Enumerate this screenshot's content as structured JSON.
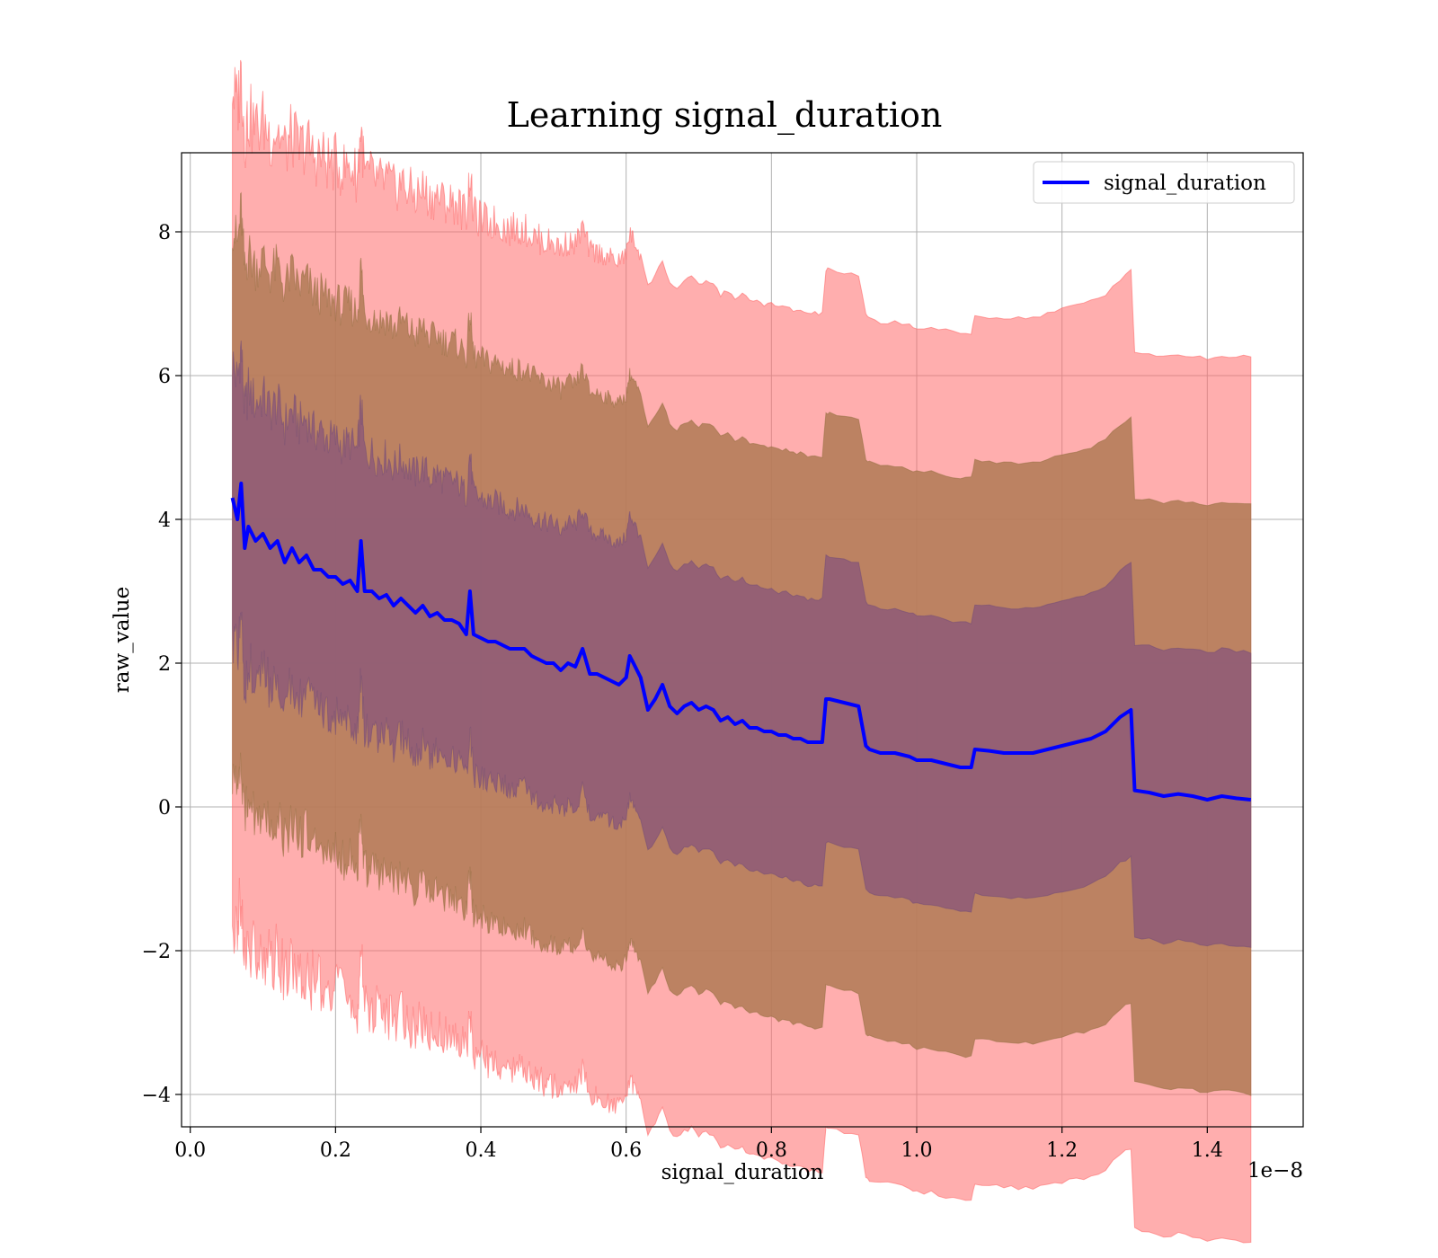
{
  "chart_data": {
    "type": "line",
    "title": "Learning signal_duration",
    "xlabel": "signal_duration",
    "ylabel": "raw_value",
    "x_offset_text": "1e−8",
    "xlim": [
      -0.012,
      1.532
    ],
    "ylim": [
      -4.45,
      9.1
    ],
    "x_ticks": [
      0.0,
      0.2,
      0.4,
      0.6,
      0.8,
      1.0,
      1.2,
      1.4
    ],
    "x_tick_labels": [
      "0.0",
      "0.2",
      "0.4",
      "0.6",
      "0.8",
      "1.0",
      "1.2",
      "1.4"
    ],
    "y_ticks": [
      -4,
      -2,
      0,
      2,
      4,
      6,
      8
    ],
    "y_tick_labels": [
      "−4",
      "−2",
      "0",
      "2",
      "4",
      "6",
      "8"
    ],
    "grid": true,
    "legend_position": "top-right",
    "colors": {
      "line": "#0000ff",
      "band_outer": "#ff6b6b",
      "band_middle": "#b07a55",
      "band_inner": "#8e5a78"
    },
    "series": [
      {
        "name": "signal_duration",
        "x": [
          0.058,
          0.065,
          0.07,
          0.075,
          0.08,
          0.09,
          0.1,
          0.11,
          0.12,
          0.13,
          0.14,
          0.15,
          0.16,
          0.17,
          0.18,
          0.19,
          0.2,
          0.21,
          0.22,
          0.23,
          0.235,
          0.24,
          0.25,
          0.26,
          0.27,
          0.28,
          0.29,
          0.3,
          0.31,
          0.32,
          0.33,
          0.34,
          0.35,
          0.36,
          0.37,
          0.38,
          0.385,
          0.39,
          0.4,
          0.41,
          0.42,
          0.43,
          0.44,
          0.45,
          0.46,
          0.47,
          0.48,
          0.49,
          0.5,
          0.51,
          0.52,
          0.53,
          0.54,
          0.55,
          0.56,
          0.57,
          0.58,
          0.59,
          0.6,
          0.605,
          0.61,
          0.62,
          0.63,
          0.64,
          0.65,
          0.66,
          0.67,
          0.68,
          0.69,
          0.7,
          0.71,
          0.72,
          0.73,
          0.74,
          0.75,
          0.76,
          0.77,
          0.78,
          0.79,
          0.8,
          0.81,
          0.82,
          0.83,
          0.84,
          0.85,
          0.86,
          0.87,
          0.875,
          0.88,
          0.9,
          0.92,
          0.93,
          0.935,
          0.95,
          0.97,
          0.99,
          1.0,
          1.02,
          1.04,
          1.06,
          1.075,
          1.08,
          1.1,
          1.12,
          1.14,
          1.16,
          1.18,
          1.2,
          1.22,
          1.24,
          1.26,
          1.28,
          1.295,
          1.3,
          1.32,
          1.34,
          1.36,
          1.38,
          1.4,
          1.42,
          1.44,
          1.46
        ],
        "y": [
          4.3,
          4.0,
          4.5,
          3.6,
          3.9,
          3.7,
          3.8,
          3.6,
          3.7,
          3.4,
          3.6,
          3.4,
          3.5,
          3.3,
          3.3,
          3.2,
          3.2,
          3.1,
          3.15,
          3.0,
          3.7,
          3.0,
          3.0,
          2.9,
          2.95,
          2.8,
          2.9,
          2.8,
          2.7,
          2.8,
          2.65,
          2.7,
          2.6,
          2.6,
          2.55,
          2.4,
          3.0,
          2.4,
          2.35,
          2.3,
          2.3,
          2.25,
          2.2,
          2.2,
          2.2,
          2.1,
          2.05,
          2.0,
          2.0,
          1.9,
          2.0,
          1.95,
          2.2,
          1.85,
          1.85,
          1.8,
          1.75,
          1.7,
          1.8,
          2.1,
          2.0,
          1.8,
          1.35,
          1.5,
          1.7,
          1.4,
          1.3,
          1.4,
          1.45,
          1.35,
          1.4,
          1.35,
          1.2,
          1.25,
          1.15,
          1.2,
          1.1,
          1.1,
          1.05,
          1.05,
          1.0,
          1.0,
          0.95,
          0.95,
          0.9,
          0.9,
          0.9,
          1.5,
          1.5,
          1.45,
          1.4,
          0.85,
          0.8,
          0.75,
          0.75,
          0.7,
          0.65,
          0.65,
          0.6,
          0.55,
          0.55,
          0.8,
          0.78,
          0.75,
          0.75,
          0.75,
          0.8,
          0.85,
          0.9,
          0.95,
          1.05,
          1.25,
          1.35,
          0.23,
          0.2,
          0.15,
          0.18,
          0.15,
          0.1,
          0.15,
          0.12,
          0.1
        ]
      }
    ]
  }
}
